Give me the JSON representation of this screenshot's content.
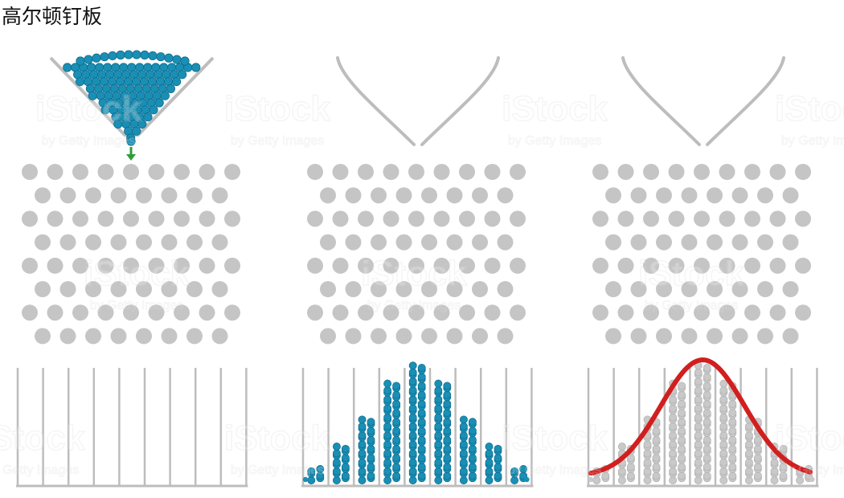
{
  "title": "高尔顿钉板",
  "watermark": {
    "main": "iStock",
    "sub": "by Getty Images"
  },
  "colors": {
    "ball": "#1a8fb5",
    "ball_edge": "#0c6b8c",
    "peg": "#c5c5c5",
    "line": "#bdbdbd",
    "arrow": "#2e9e3a",
    "curve": "#d11f1f",
    "grey_ball": "#c9c9c9"
  },
  "panels": [
    {
      "stage": "funnel-full",
      "bins_filled": false,
      "curve": false
    },
    {
      "stage": "balls-collected",
      "bins_filled": true,
      "curve": false
    },
    {
      "stage": "normal-curve",
      "bins_filled": true,
      "curve": true
    }
  ],
  "bin_counts": [
    1,
    3,
    7,
    14,
    22,
    26,
    22,
    14,
    7,
    3,
    1
  ]
}
